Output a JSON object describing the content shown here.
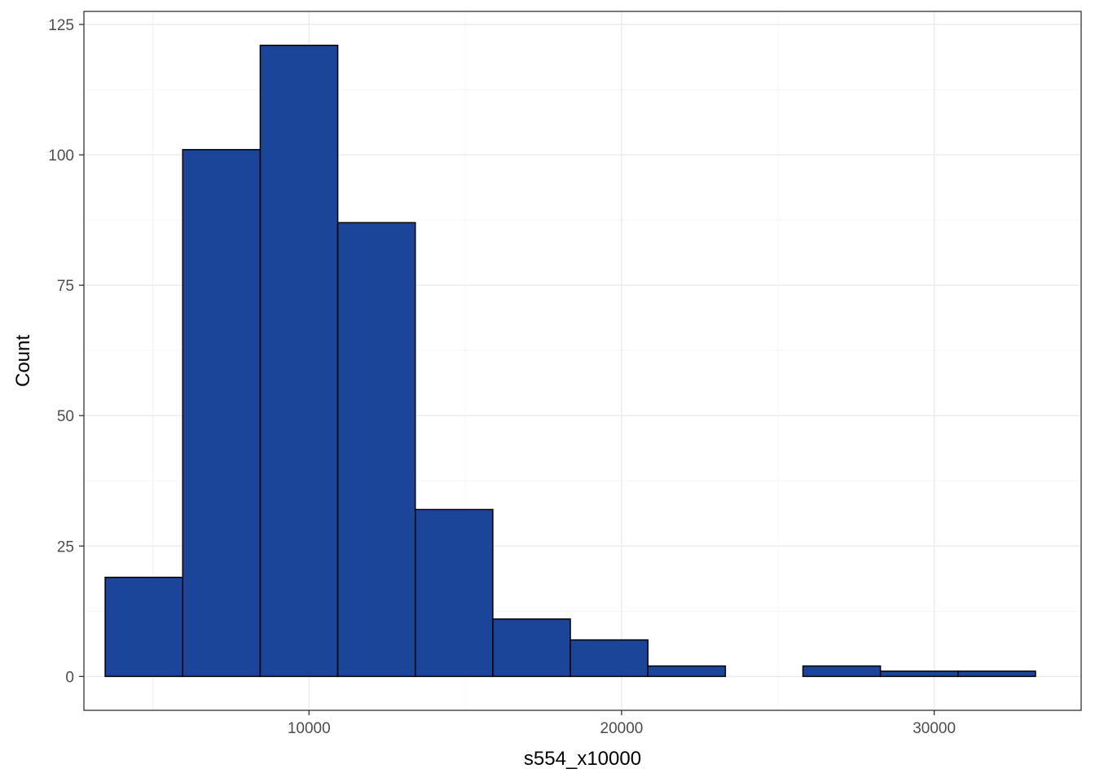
{
  "chart_data": {
    "type": "bar",
    "xlabel": "s554_x10000",
    "ylabel": "Count",
    "xlim": [
      2800,
      34700
    ],
    "ylim": [
      -6.5,
      127.5
    ],
    "x_ticks": [
      10000,
      20000,
      30000
    ],
    "x_tick_labels": [
      "10000",
      "20000",
      "30000"
    ],
    "y_ticks": [
      0,
      25,
      50,
      75,
      100,
      125
    ],
    "y_tick_labels": [
      "0",
      "25",
      "50",
      "75",
      "100",
      "125"
    ],
    "grid": true,
    "bin_width": 2480,
    "bins": [
      {
        "x0": 3480,
        "x1": 5960,
        "count": 19
      },
      {
        "x0": 5960,
        "x1": 8440,
        "count": 101
      },
      {
        "x0": 8440,
        "x1": 10920,
        "count": 121
      },
      {
        "x0": 10920,
        "x1": 13400,
        "count": 87
      },
      {
        "x0": 13400,
        "x1": 15880,
        "count": 32
      },
      {
        "x0": 15880,
        "x1": 18360,
        "count": 11
      },
      {
        "x0": 18360,
        "x1": 20840,
        "count": 7
      },
      {
        "x0": 20840,
        "x1": 23320,
        "count": 2
      },
      {
        "x0": 23320,
        "x1": 25800,
        "count": 0
      },
      {
        "x0": 25800,
        "x1": 28280,
        "count": 2
      },
      {
        "x0": 28280,
        "x1": 30760,
        "count": 1
      },
      {
        "x0": 30760,
        "x1": 33240,
        "count": 1
      }
    ],
    "colors": {
      "bar_fill": "#1a4599",
      "bar_outline": "#000000",
      "panel_border": "#333333",
      "grid": "#ebebeb"
    }
  }
}
